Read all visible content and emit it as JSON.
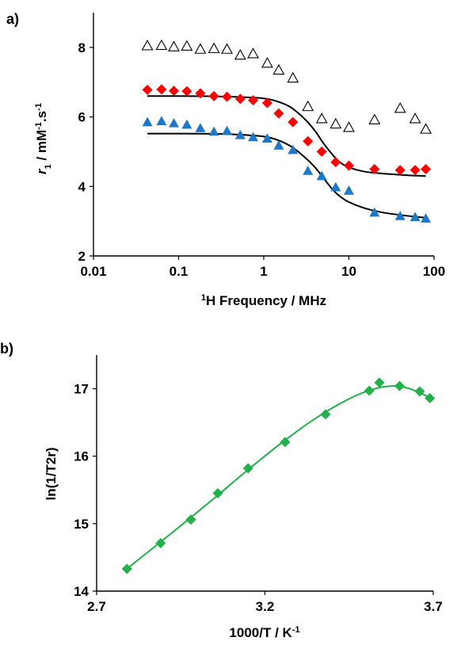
{
  "chart_data": [
    {
      "panel_label": "a)",
      "type": "scatter",
      "xscale": "log",
      "xlim": [
        0.01,
        100
      ],
      "ylim": [
        2,
        9
      ],
      "xticks": [
        "0.01",
        "0.1",
        "1",
        "10",
        "100"
      ],
      "yticks": [
        "2",
        "4",
        "6",
        "8"
      ],
      "xlabel_sup": "1",
      "xlabel": "H Frequency / MHz",
      "ylabel_var": "r",
      "ylabel_sub": "1",
      "ylabel_mid": " / mM",
      "ylabel_sup1": "-1",
      "ylabel_mid2": ".s",
      "ylabel_sup2": "-1",
      "series": [
        {
          "marker": "triangle-open",
          "color": "#000000",
          "x": [
            0.043,
            0.063,
            0.088,
            0.125,
            0.18,
            0.26,
            0.37,
            0.53,
            0.75,
            1.1,
            1.5,
            2.2,
            3.3,
            4.8,
            7.0,
            10,
            20,
            40,
            60,
            80
          ],
          "y": [
            8.05,
            8.06,
            8.02,
            8.04,
            7.95,
            7.97,
            7.95,
            7.78,
            7.82,
            7.55,
            7.35,
            7.12,
            6.3,
            5.95,
            5.8,
            5.7,
            5.92,
            6.25,
            5.95,
            5.65
          ]
        },
        {
          "marker": "diamond",
          "color": "#ff0000",
          "x": [
            0.043,
            0.063,
            0.088,
            0.125,
            0.18,
            0.26,
            0.37,
            0.53,
            0.75,
            1.1,
            1.5,
            2.2,
            3.3,
            4.8,
            7.0,
            10,
            20,
            40,
            60,
            80
          ],
          "y": [
            6.78,
            6.79,
            6.75,
            6.74,
            6.68,
            6.6,
            6.58,
            6.52,
            6.48,
            6.4,
            6.1,
            5.85,
            5.3,
            5.0,
            4.7,
            4.6,
            4.5,
            4.47,
            4.47,
            4.5
          ]
        },
        {
          "marker": "triangle",
          "color": "#1f77c8",
          "x": [
            0.043,
            0.063,
            0.088,
            0.125,
            0.18,
            0.26,
            0.37,
            0.53,
            0.75,
            1.1,
            1.5,
            2.2,
            3.3,
            4.8,
            7.0,
            10,
            20,
            40,
            60,
            80
          ],
          "y": [
            5.85,
            5.88,
            5.82,
            5.78,
            5.68,
            5.58,
            5.6,
            5.48,
            5.42,
            5.38,
            5.18,
            5.05,
            4.45,
            4.3,
            3.98,
            3.88,
            3.25,
            3.15,
            3.12,
            3.08
          ]
        }
      ],
      "fit_curves": [
        {
          "color": "#000000",
          "x": [
            0.043,
            0.1,
            0.3,
            0.7,
            1.2,
            2.0,
            3.0,
            4.0,
            5.0,
            6.5,
            8.0,
            10,
            15,
            25,
            50,
            80
          ],
          "y": [
            6.6,
            6.6,
            6.59,
            6.56,
            6.5,
            6.3,
            5.95,
            5.6,
            5.25,
            4.9,
            4.68,
            4.55,
            4.43,
            4.37,
            4.32,
            4.3
          ]
        },
        {
          "color": "#000000",
          "x": [
            0.043,
            0.1,
            0.3,
            0.7,
            1.2,
            2.0,
            3.0,
            4.0,
            5.0,
            6.5,
            8.0,
            10,
            15,
            25,
            50,
            80
          ],
          "y": [
            5.52,
            5.52,
            5.51,
            5.47,
            5.4,
            5.18,
            4.85,
            4.55,
            4.25,
            3.9,
            3.7,
            3.55,
            3.38,
            3.25,
            3.15,
            3.1
          ]
        }
      ]
    },
    {
      "panel_label": "b)",
      "type": "scatter",
      "xlim": [
        2.7,
        3.7
      ],
      "ylim": [
        14,
        17.5
      ],
      "xticks": [
        "2.7",
        "3.2",
        "3.7"
      ],
      "yticks": [
        "14",
        "15",
        "16",
        "17"
      ],
      "xlabel": "1000/T / K",
      "xlabel_sup": "-1",
      "ylabel": "ln(1/T2r)",
      "series": [
        {
          "marker": "diamond",
          "color": "#22b04a",
          "x": [
            2.79,
            2.89,
            2.98,
            3.06,
            3.15,
            3.26,
            3.38,
            3.51,
            3.54,
            3.6,
            3.66,
            3.69
          ],
          "y": [
            14.33,
            14.71,
            15.06,
            15.45,
            15.82,
            16.21,
            16.62,
            16.97,
            17.09,
            17.04,
            16.96,
            16.86
          ]
        }
      ],
      "fit_curves": [
        {
          "color": "#22b04a",
          "x": [
            2.79,
            2.85,
            2.95,
            3.05,
            3.15,
            3.25,
            3.35,
            3.45,
            3.52,
            3.58,
            3.63,
            3.69
          ],
          "y": [
            14.33,
            14.57,
            14.97,
            15.38,
            15.8,
            16.2,
            16.56,
            16.85,
            16.99,
            17.04,
            17.0,
            16.87
          ]
        }
      ]
    }
  ]
}
